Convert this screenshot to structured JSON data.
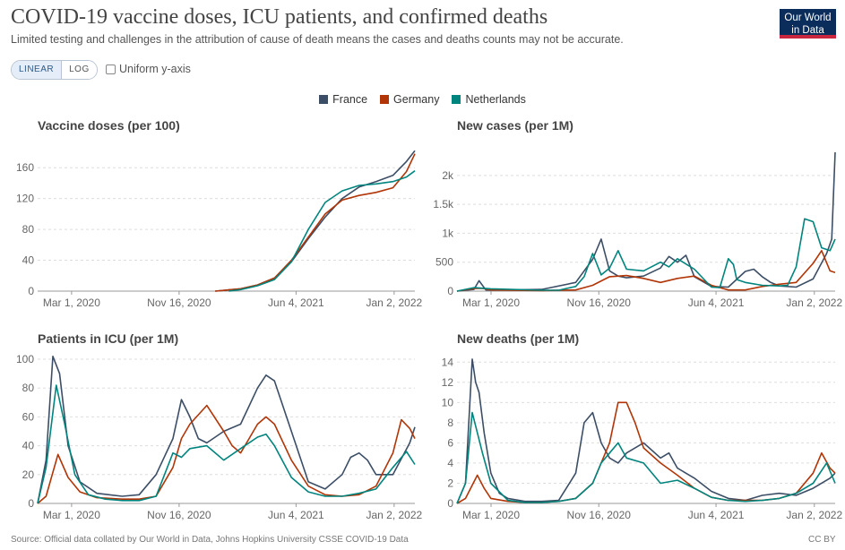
{
  "header": {
    "title": "COVID-19 vaccine doses, ICU patients, and confirmed deaths",
    "subtitle": "Limited testing and challenges in the attribution of cause of death means the cases and deaths counts may not be accurate.",
    "logo_line1": "Our World",
    "logo_line2": "in Data"
  },
  "controls": {
    "linear_label": "LINEAR",
    "log_label": "LOG",
    "uniform_label": "Uniform y-axis"
  },
  "footer": {
    "source": "Source: Official data collated by Our World in Data, Johns Hopkins University CSSE COVID-19 Data",
    "license": "CC BY"
  },
  "colors": {
    "France": "#3c4e66",
    "Germany": "#b13507",
    "Netherlands": "#00847e"
  },
  "chart_data": [
    {
      "type": "line",
      "title": "Vaccine doses (per 100)",
      "xticks": [
        "Mar 1, 2020",
        "Nov 16, 2020",
        "Jun 4, 2021",
        "Jan 2, 2022"
      ],
      "xlim": [
        0,
        22.3
      ],
      "ylim": [
        0,
        180
      ],
      "yticks": [
        0,
        40,
        80,
        120,
        160
      ],
      "ytick_labels": [
        "0",
        "40",
        "80",
        "120",
        "160"
      ],
      "legend": [
        "France",
        "Germany",
        "Netherlands"
      ],
      "series": [
        {
          "name": "France",
          "x": [
            10.5,
            12,
            13,
            14,
            15,
            16,
            17,
            18,
            19,
            20,
            21,
            21.8,
            22.3
          ],
          "values": [
            0,
            3,
            8,
            17,
            38,
            68,
            96,
            120,
            135,
            142,
            150,
            168,
            182
          ]
        },
        {
          "name": "Germany",
          "x": [
            10.5,
            12,
            13,
            14,
            15,
            16,
            17,
            18,
            19,
            20,
            21,
            21.8,
            22.3
          ],
          "values": [
            0,
            3,
            8,
            17,
            40,
            70,
            100,
            118,
            124,
            128,
            134,
            155,
            178
          ]
        },
        {
          "name": "Netherlands",
          "x": [
            11.3,
            12,
            13,
            14,
            15,
            16,
            17,
            18,
            19,
            20,
            21,
            21.8,
            22.3
          ],
          "values": [
            0,
            2,
            7,
            15,
            38,
            80,
            115,
            130,
            137,
            139,
            142,
            148,
            156
          ]
        }
      ]
    },
    {
      "type": "line",
      "title": "New cases (per 1M)",
      "xticks": [
        "Mar 1, 2020",
        "Nov 16, 2020",
        "Jun 4, 2021",
        "Jan 2, 2022"
      ],
      "xlim": [
        0,
        22.3
      ],
      "ylim": [
        0,
        2400
      ],
      "yticks": [
        0,
        500,
        1000,
        1500,
        2000
      ],
      "ytick_labels": [
        "0",
        "500",
        "1k",
        "1.5k",
        "2k"
      ],
      "series": [
        {
          "name": "France",
          "x": [
            0,
            1,
            1.3,
            1.7,
            2,
            5,
            7,
            8,
            8.5,
            9,
            9.5,
            10,
            11,
            12,
            12.5,
            13,
            13.5,
            14,
            15,
            16,
            17,
            17.5,
            18,
            18.5,
            19,
            20,
            21,
            21.8,
            22.1,
            22.3
          ],
          "values": [
            0,
            30,
            180,
            20,
            15,
            30,
            150,
            550,
            900,
            350,
            260,
            230,
            260,
            400,
            600,
            500,
            620,
            250,
            80,
            70,
            340,
            380,
            250,
            150,
            90,
            70,
            210,
            650,
            900,
            2400
          ]
        },
        {
          "name": "Germany",
          "x": [
            0,
            1,
            1.5,
            2,
            5,
            7,
            8,
            9,
            10,
            11,
            12,
            13,
            14,
            15,
            16,
            17,
            18,
            19,
            20,
            21,
            21.5,
            22,
            22.3
          ],
          "values": [
            0,
            45,
            50,
            20,
            10,
            20,
            100,
            250,
            270,
            220,
            150,
            220,
            260,
            100,
            20,
            20,
            80,
            120,
            150,
            480,
            700,
            350,
            320
          ]
        },
        {
          "name": "Netherlands",
          "x": [
            0,
            1,
            2,
            5,
            6,
            7,
            7.5,
            8,
            8.5,
            9,
            9.5,
            10,
            11,
            12,
            12.5,
            13,
            14,
            15,
            15.5,
            16,
            16.3,
            16.5,
            17,
            18,
            19,
            19.5,
            20,
            20.5,
            21,
            21.5,
            22,
            22.3
          ],
          "values": [
            0,
            60,
            40,
            15,
            15,
            80,
            250,
            650,
            280,
            400,
            700,
            380,
            350,
            500,
            420,
            560,
            380,
            70,
            60,
            560,
            460,
            200,
            150,
            100,
            90,
            100,
            420,
            1250,
            1200,
            750,
            700,
            900
          ]
        }
      ]
    },
    {
      "type": "line",
      "title": "Patients in ICU (per 1M)",
      "xticks": [
        "Mar 1, 2020",
        "Nov 16, 2020",
        "Jun 4, 2021",
        "Jan 2, 2022"
      ],
      "xlim": [
        0,
        22.3
      ],
      "ylim": [
        0,
        105
      ],
      "yticks": [
        0,
        20,
        40,
        60,
        80,
        100
      ],
      "ytick_labels": [
        "0",
        "20",
        "40",
        "60",
        "80",
        "100"
      ],
      "series": [
        {
          "name": "France",
          "x": [
            0,
            0.5,
            0.9,
            1.3,
            1.8,
            2.5,
            3.5,
            5,
            6,
            7,
            8,
            8.5,
            9,
            9.5,
            10,
            11,
            12,
            13,
            13.5,
            14,
            15,
            16,
            17,
            18,
            18.5,
            19,
            19.5,
            20,
            21,
            22,
            22.3
          ],
          "values": [
            0,
            30,
            102,
            90,
            40,
            15,
            7,
            5,
            6,
            20,
            45,
            72,
            60,
            45,
            42,
            50,
            55,
            80,
            89,
            85,
            50,
            15,
            10,
            20,
            32,
            35,
            30,
            20,
            20,
            42,
            53
          ]
        },
        {
          "name": "Germany",
          "x": [
            0,
            0.5,
            1.2,
            1.8,
            2.5,
            3.5,
            5,
            6,
            7,
            8,
            8.5,
            9,
            10,
            11,
            11.5,
            12,
            12.5,
            13,
            13.5,
            14,
            15,
            16,
            17,
            18,
            19,
            20,
            21,
            21.5,
            22,
            22.3
          ],
          "values": [
            0,
            5,
            34,
            18,
            8,
            4,
            3,
            3,
            5,
            25,
            45,
            55,
            68,
            50,
            40,
            35,
            45,
            55,
            60,
            55,
            30,
            12,
            6,
            5,
            6,
            12,
            35,
            58,
            52,
            45
          ]
        },
        {
          "name": "Netherlands",
          "x": [
            0,
            0.5,
            1.1,
            1.6,
            2.2,
            3,
            4,
            5,
            6,
            7,
            8,
            8.5,
            9,
            10,
            11,
            12,
            13,
            13.5,
            14,
            15,
            16,
            17,
            18,
            19,
            20,
            21,
            21.8,
            22.3
          ],
          "values": [
            0,
            25,
            82,
            55,
            20,
            6,
            3,
            2,
            2,
            5,
            35,
            32,
            38,
            40,
            30,
            38,
            46,
            48,
            40,
            18,
            8,
            5,
            5,
            7,
            10,
            25,
            36,
            27
          ]
        }
      ]
    },
    {
      "type": "line",
      "title": "New deaths (per 1M)",
      "xticks": [
        "Mar 1, 2020",
        "Nov 16, 2020",
        "Jun 4, 2021",
        "Jan 2, 2022"
      ],
      "xlim": [
        0,
        22.3
      ],
      "ylim": [
        0,
        15
      ],
      "yticks": [
        0,
        2,
        4,
        6,
        8,
        10,
        12,
        14
      ],
      "ytick_labels": [
        "0",
        "2",
        "4",
        "6",
        "8",
        "10",
        "12",
        "14"
      ],
      "series": [
        {
          "name": "France",
          "x": [
            0,
            0.5,
            0.9,
            1.1,
            1.3,
            1.6,
            2,
            2.5,
            3,
            4,
            5,
            6,
            7,
            7.5,
            8,
            8.5,
            9,
            9.5,
            10,
            11,
            12,
            12.5,
            13,
            14,
            15,
            16,
            17,
            18,
            19,
            20,
            21,
            22,
            22.3
          ],
          "values": [
            0,
            2,
            14.3,
            12,
            11,
            7,
            3,
            1,
            0.5,
            0.2,
            0.2,
            0.3,
            3,
            8,
            9,
            6,
            4.5,
            4,
            5,
            6,
            4.5,
            5,
            3.5,
            2.5,
            1.2,
            0.5,
            0.3,
            0.8,
            1,
            0.8,
            1.5,
            2.5,
            3
          ]
        },
        {
          "name": "Germany",
          "x": [
            0,
            0.5,
            1.2,
            1.6,
            2,
            3,
            4,
            5,
            6,
            7,
            8,
            9,
            9.5,
            10,
            10.5,
            11,
            12,
            13,
            14,
            15,
            16,
            17,
            18,
            19,
            20,
            21,
            21.5,
            22,
            22.3
          ],
          "values": [
            0,
            0.5,
            2.8,
            1.5,
            0.5,
            0.2,
            0.1,
            0.1,
            0.2,
            0.5,
            2,
            6,
            10,
            10,
            8,
            5.5,
            4,
            2.8,
            1.5,
            0.6,
            0.3,
            0.3,
            0.3,
            0.5,
            1,
            3,
            5,
            3.5,
            3
          ]
        },
        {
          "name": "Netherlands",
          "x": [
            0,
            0.5,
            0.9,
            1.2,
            1.5,
            2,
            3,
            4,
            5,
            6,
            7,
            8,
            8.5,
            9,
            9.5,
            10,
            11,
            12,
            13,
            14,
            15,
            16,
            17,
            18,
            19,
            20,
            21,
            21.8,
            22.3
          ],
          "values": [
            0,
            2,
            9,
            7,
            5,
            2,
            0.3,
            0.1,
            0.1,
            0.2,
            0.5,
            2,
            4,
            5,
            6,
            4.5,
            4,
            2,
            2.3,
            1.5,
            0.6,
            0.3,
            0.2,
            0.3,
            0.5,
            1,
            2,
            4,
            2
          ]
        }
      ]
    }
  ]
}
